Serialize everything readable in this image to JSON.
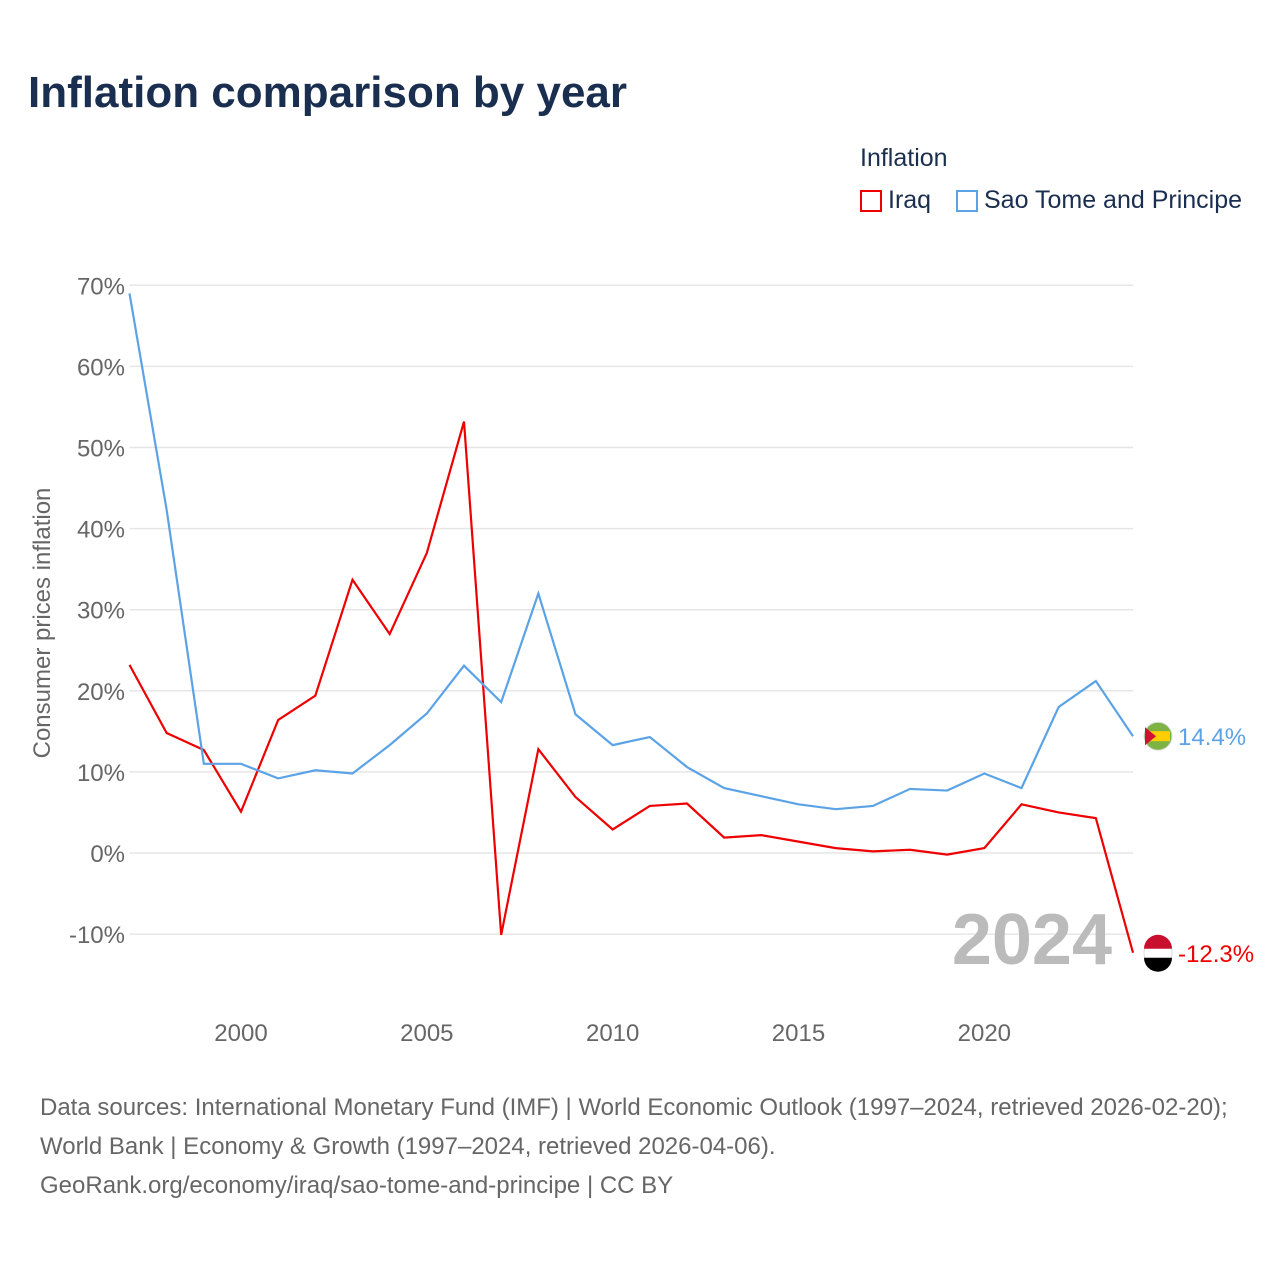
{
  "title": "Inflation comparison by year",
  "legend": {
    "title": "Inflation",
    "items": [
      {
        "name": "Iraq",
        "color": "#ee0000"
      },
      {
        "name": "Sao Tome and Principe",
        "color": "#5ba3e6"
      }
    ]
  },
  "year_label": "2024",
  "source_lines": [
    "Data sources: International Monetary Fund (IMF) | World Economic Outlook (1997–2024, retrieved 2026-02-20); World Bank | Economy & Growth (1997–2024, retrieved 2026-04-06).",
    "GeoRank.org/economy/iraq/sao-tome-and-principe | CC BY"
  ],
  "chart_data": {
    "type": "line",
    "title": "Inflation comparison by year",
    "ylabel": "Consumer prices inflation",
    "xlabel": "",
    "ylim": [
      -10,
      70
    ],
    "xlim": [
      1997,
      2024
    ],
    "yticks": [
      -10,
      0,
      10,
      20,
      30,
      40,
      50,
      60,
      70
    ],
    "ytick_labels": [
      "-10%",
      "0%",
      "10%",
      "20%",
      "30%",
      "40%",
      "50%",
      "60%",
      "70%"
    ],
    "xticks": [
      2000,
      2005,
      2010,
      2015,
      2020
    ],
    "xtick_labels": [
      "2000",
      "2005",
      "2010",
      "2015",
      "2020"
    ],
    "grid": true,
    "legend_position": "top-right",
    "x": [
      1997,
      1998,
      1999,
      2000,
      2001,
      2002,
      2003,
      2004,
      2005,
      2006,
      2007,
      2008,
      2009,
      2010,
      2011,
      2012,
      2013,
      2014,
      2015,
      2016,
      2017,
      2018,
      2019,
      2020,
      2021,
      2022,
      2023,
      2024
    ],
    "series": [
      {
        "name": "Iraq",
        "color": "#ee0000",
        "end_label": "-12.3%",
        "values": [
          23.2,
          14.8,
          12.7,
          5.1,
          16.4,
          19.4,
          33.7,
          27.0,
          37.0,
          53.2,
          -10.1,
          12.8,
          6.9,
          2.9,
          5.8,
          6.1,
          1.9,
          2.2,
          1.4,
          0.6,
          0.2,
          0.4,
          -0.2,
          0.6,
          6.0,
          5.0,
          4.3,
          -12.3
        ]
      },
      {
        "name": "Sao Tome and Principe",
        "color": "#5ba3e6",
        "end_label": "14.4%",
        "values": [
          69.0,
          42.3,
          11.0,
          11.0,
          9.2,
          10.2,
          9.8,
          13.3,
          17.2,
          23.1,
          18.6,
          32.0,
          17.1,
          13.3,
          14.3,
          10.6,
          8.0,
          7.0,
          6.0,
          5.4,
          5.8,
          7.9,
          7.7,
          9.8,
          8.0,
          18.0,
          21.2,
          14.4
        ]
      }
    ]
  }
}
